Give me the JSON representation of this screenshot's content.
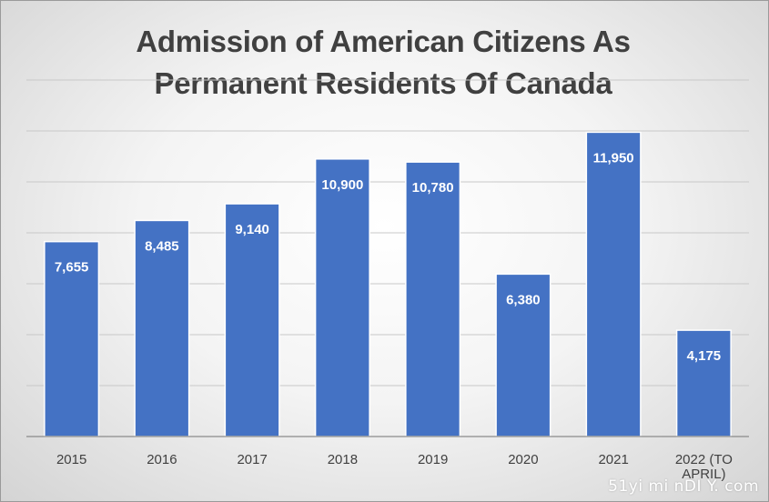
{
  "chart_data": {
    "type": "bar",
    "title_lines": [
      "Admission of American Citizens As",
      "Permanent Residents Of Canada"
    ],
    "categories": [
      "2015",
      "2016",
      "2017",
      "2018",
      "2019",
      "2020",
      "2021",
      "2022 (TO APRIL)"
    ],
    "series": [
      {
        "values": [
          7655,
          8485,
          9140,
          10900,
          10780,
          6380,
          11950,
          4175
        ],
        "labels": [
          "7,655",
          "8,485",
          "9,140",
          "10,900",
          "10,780",
          "6,380",
          "11,950",
          "4,175"
        ]
      }
    ],
    "ylim": [
      0,
      14000
    ],
    "y_gridline_step": 2000,
    "y_tick_labels_shown": false,
    "grid": true,
    "legend": "none",
    "bar_color": "#4472c4",
    "data_label_color": "#ffffff"
  },
  "watermark": "51yi mi nDI Y. com"
}
